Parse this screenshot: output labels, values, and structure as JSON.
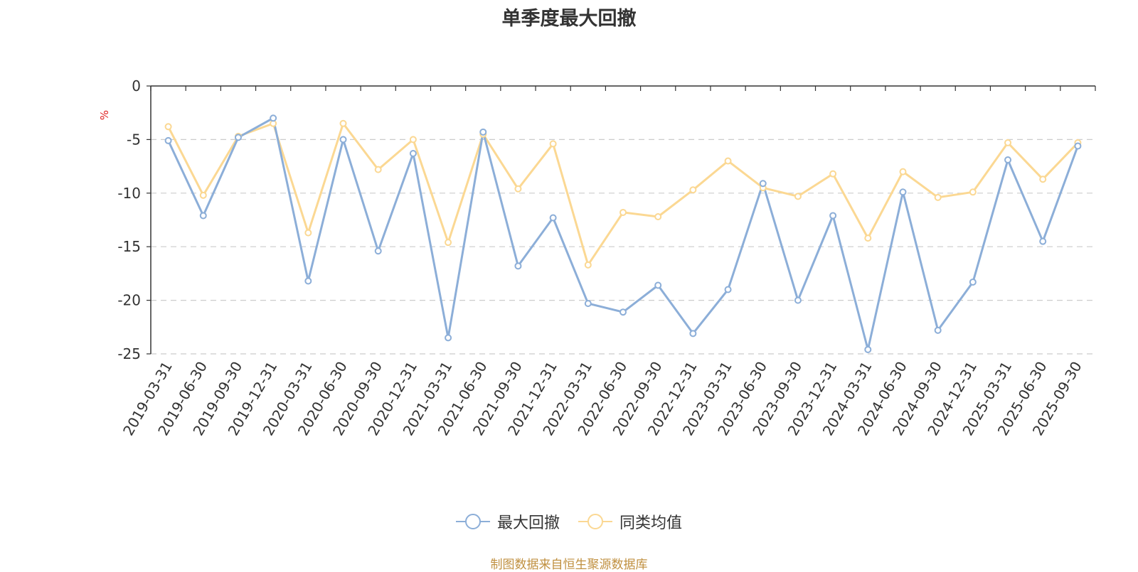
{
  "chart_data": {
    "type": "line",
    "title": "单季度最大回撤",
    "ylabel": "%",
    "xlabel": "",
    "ylim": [
      -25,
      0
    ],
    "yticks": [
      0,
      -5,
      -10,
      -15,
      -20,
      -25
    ],
    "grid": "horizontal-dashed",
    "legend_position": "bottom-center",
    "categories": [
      "2019-03-31",
      "2019-06-30",
      "2019-09-30",
      "2019-12-31",
      "2020-03-31",
      "2020-06-30",
      "2020-09-30",
      "2020-12-31",
      "2021-03-31",
      "2021-06-30",
      "2021-09-30",
      "2021-12-31",
      "2022-03-31",
      "2022-06-30",
      "2022-09-30",
      "2022-12-31",
      "2023-03-31",
      "2023-06-30",
      "2023-09-30",
      "2023-12-31",
      "2024-03-31",
      "2024-06-30",
      "2024-09-30",
      "2024-12-31",
      "2025-03-31",
      "2025-06-30",
      "2025-09-30"
    ],
    "series": [
      {
        "name": "最大回撤",
        "color": "#8caed8",
        "values": [
          -5.1,
          -12.1,
          -4.8,
          -3.0,
          -18.2,
          -5.0,
          -15.4,
          -6.3,
          -23.5,
          -4.3,
          -16.8,
          -12.3,
          -20.3,
          -21.1,
          -18.6,
          -23.1,
          -19.0,
          -9.1,
          -20.0,
          -12.1,
          -24.6,
          -9.9,
          -22.8,
          -18.3,
          -6.9,
          -14.5,
          -5.6
        ]
      },
      {
        "name": "同类均值",
        "color": "#fbd893",
        "values": [
          -3.8,
          -10.2,
          -4.7,
          -3.5,
          -13.7,
          -3.5,
          -7.8,
          -5.0,
          -14.6,
          -4.5,
          -9.6,
          -5.4,
          -16.7,
          -11.8,
          -12.2,
          -9.7,
          -7.0,
          -9.5,
          -10.3,
          -8.2,
          -14.2,
          -8.0,
          -10.4,
          -9.9,
          -5.3,
          -8.7,
          -5.3
        ]
      }
    ]
  },
  "source_text": "制图数据来自恒生聚源数据库"
}
